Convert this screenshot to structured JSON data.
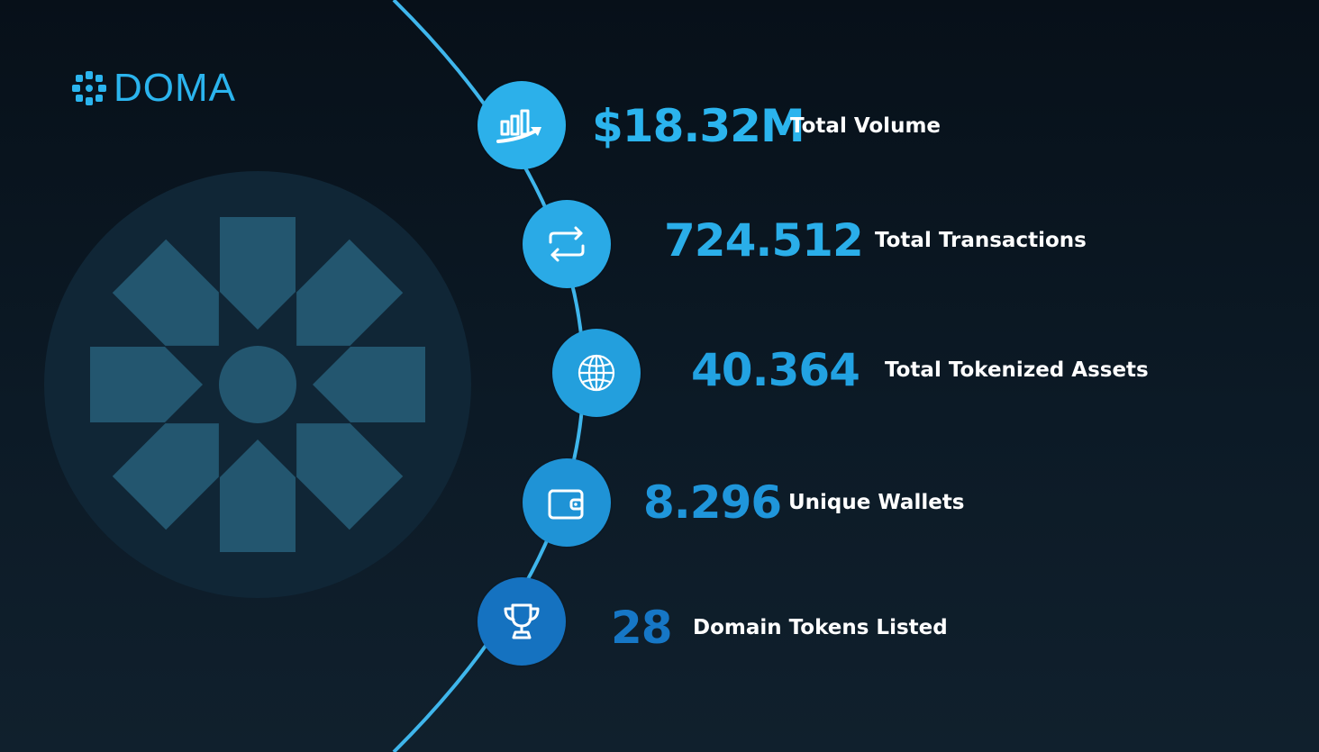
{
  "brand": {
    "name": "DOMA",
    "logo_icon": "flower-grid-icon",
    "emblem_icon": "doma-flower-emblem-icon"
  },
  "colors": {
    "accent": "#2bb4ee",
    "arc": "#3fb6ec",
    "emblem_circle": "#102636",
    "emblem_petals": "#23566f",
    "icon_light": "#2cb0ea",
    "icon_mid": "#1f9bdb",
    "icon_dark": "#1572c0"
  },
  "stats": [
    {
      "value": "$18.32M",
      "label": "Total Volume",
      "icon": "trending-chart-icon"
    },
    {
      "value": "724.512",
      "label": "Total Transactions",
      "icon": "swap-arrows-icon"
    },
    {
      "value": "40.364",
      "label": "Total Tokenized Assets",
      "icon": "globe-icon"
    },
    {
      "value": "8.296",
      "label": "Unique Wallets",
      "icon": "wallet-icon"
    },
    {
      "value": "28",
      "label": "Domain Tokens Listed",
      "icon": "trophy-icon"
    }
  ]
}
